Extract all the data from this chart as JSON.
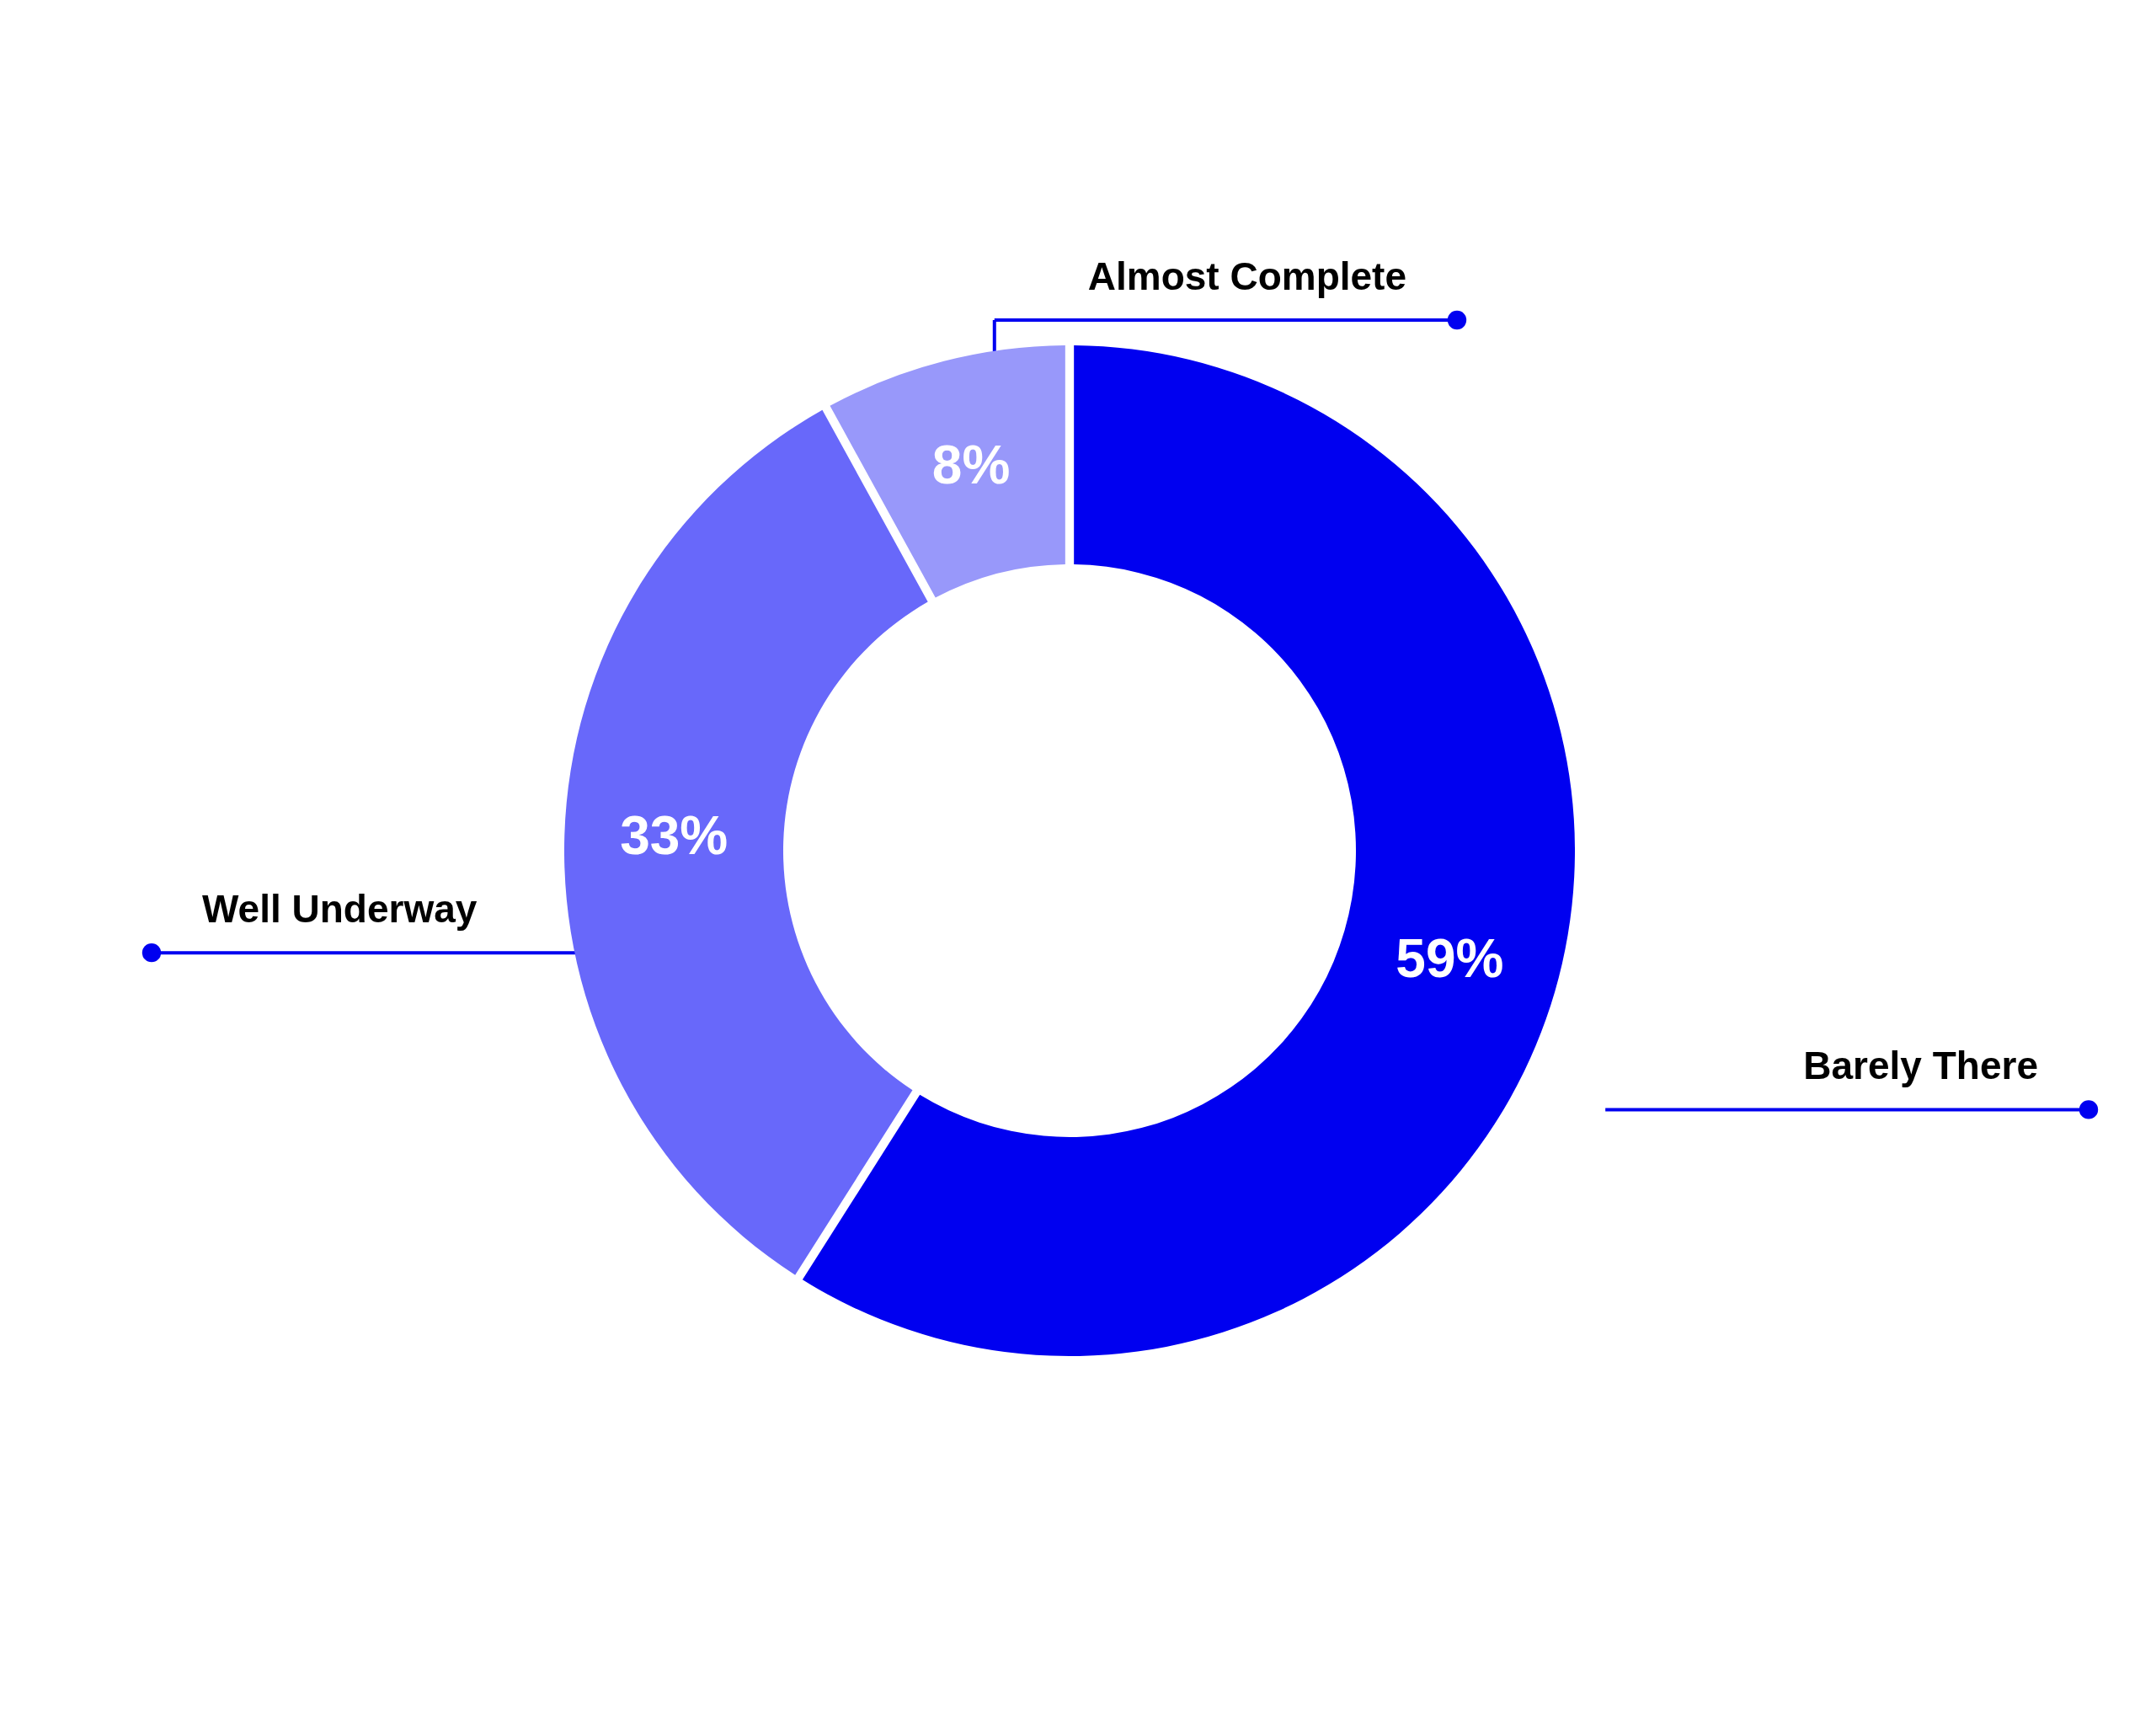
{
  "chart_data": {
    "type": "donut",
    "categories": [
      "Barely There",
      "Well Underway",
      "Almost Complete"
    ],
    "values": [
      59,
      33,
      8
    ],
    "colors": [
      "#0000f0",
      "#6868fa",
      "#9898fa"
    ],
    "value_labels": [
      "59%",
      "33%",
      "8%"
    ],
    "legend": false
  }
}
